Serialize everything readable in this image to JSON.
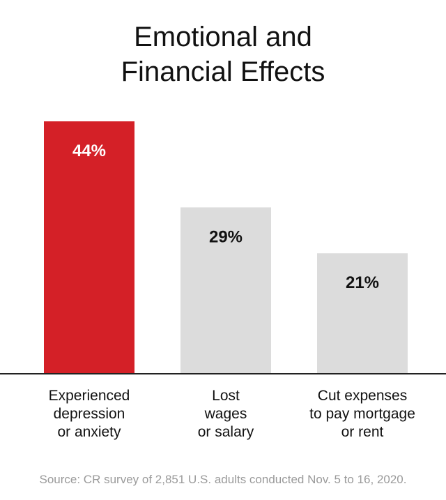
{
  "title": {
    "line1": "Emotional and",
    "line2": "Financial Effects"
  },
  "source": "Source: CR survey of 2,851 U.S. adults conducted Nov. 5 to 16, 2020.",
  "colors": {
    "highlight": "#d42027",
    "muted": "#dcdcdc",
    "axis": "#222222",
    "highlight_label": "#ffffff",
    "muted_label": "#111111"
  },
  "chart_data": {
    "type": "bar",
    "categories": [
      [
        "Experienced",
        "depression",
        "or anxiety"
      ],
      [
        "Lost",
        "wages",
        "or salary"
      ],
      [
        "Cut expenses",
        "to pay mortgage",
        "or rent"
      ]
    ],
    "values": [
      44,
      29,
      21
    ],
    "data_labels": [
      "44%",
      "29%",
      "21%"
    ],
    "highlight_index": 0,
    "ylim": [
      0,
      44
    ],
    "grid": false,
    "legend": "none"
  }
}
